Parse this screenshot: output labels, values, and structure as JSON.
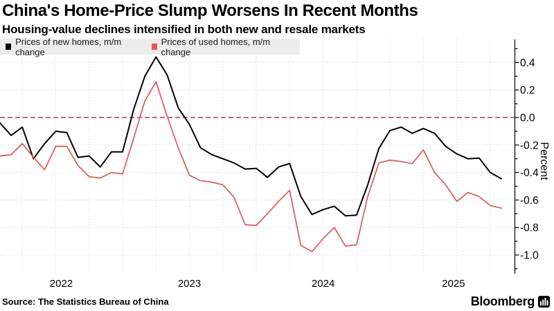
{
  "header": {
    "title": "China's Home-Price Slump Worsens In Recent Months",
    "subtitle": "Housing-value declines intensified in both new and resale markets"
  },
  "legend": [
    {
      "label": "Prices of new homes, m/m change",
      "color": "#000000"
    },
    {
      "label": "Prices of used homes, m/m change",
      "color": "#e8555a"
    }
  ],
  "chart_data": {
    "type": "line",
    "x_granularity": "monthly",
    "x_tick_labels": [
      {
        "label": "2022",
        "month_index": 5.5
      },
      {
        "label": "2023",
        "month_index": 17
      },
      {
        "label": "2024",
        "month_index": 29
      },
      {
        "label": "2025",
        "month_index": 40.7
      }
    ],
    "ylabel": "Percent",
    "ylim": [
      -1.13,
      0.57
    ],
    "yticks_labeled": [
      0.4,
      0.2,
      0.0,
      -0.2,
      -0.4,
      -0.6,
      -0.8,
      -1.0
    ],
    "ytick_minor_step": 0.1,
    "grid": "dotted light-gray, quarterly vertical lines",
    "zero_line": {
      "style": "dashed",
      "color": "#b23a4c",
      "value": 0.0
    },
    "series": [
      {
        "name": "Prices of new homes, m/m change",
        "color": "#000000",
        "values": [
          -0.04,
          -0.13,
          -0.07,
          -0.3,
          -0.19,
          -0.1,
          -0.11,
          -0.29,
          -0.28,
          -0.36,
          -0.25,
          -0.25,
          0.06,
          0.3,
          0.44,
          0.31,
          0.07,
          -0.05,
          -0.22,
          -0.27,
          -0.3,
          -0.33,
          -0.375,
          -0.37,
          -0.435,
          -0.36,
          -0.335,
          -0.575,
          -0.705,
          -0.67,
          -0.645,
          -0.715,
          -0.71,
          -0.49,
          -0.225,
          -0.095,
          -0.07,
          -0.115,
          -0.08,
          -0.115,
          -0.21,
          -0.265,
          -0.3,
          -0.295,
          -0.4,
          -0.445
        ]
      },
      {
        "name": "Prices of used homes, m/m change",
        "color": "#e05f60",
        "values": [
          -0.28,
          -0.27,
          -0.19,
          -0.29,
          -0.38,
          -0.21,
          -0.21,
          -0.35,
          -0.43,
          -0.44,
          -0.4,
          -0.41,
          -0.15,
          0.12,
          0.26,
          0.01,
          -0.22,
          -0.42,
          -0.46,
          -0.47,
          -0.49,
          -0.58,
          -0.78,
          -0.785,
          -0.7,
          -0.61,
          -0.53,
          -0.93,
          -0.975,
          -0.88,
          -0.8,
          -0.935,
          -0.925,
          -0.575,
          -0.33,
          -0.31,
          -0.32,
          -0.335,
          -0.235,
          -0.4,
          -0.49,
          -0.61,
          -0.545,
          -0.575,
          -0.64,
          -0.66
        ]
      }
    ]
  },
  "footer": {
    "source": "Source: The Statistics Bureau of China",
    "brand": "Bloomberg"
  }
}
